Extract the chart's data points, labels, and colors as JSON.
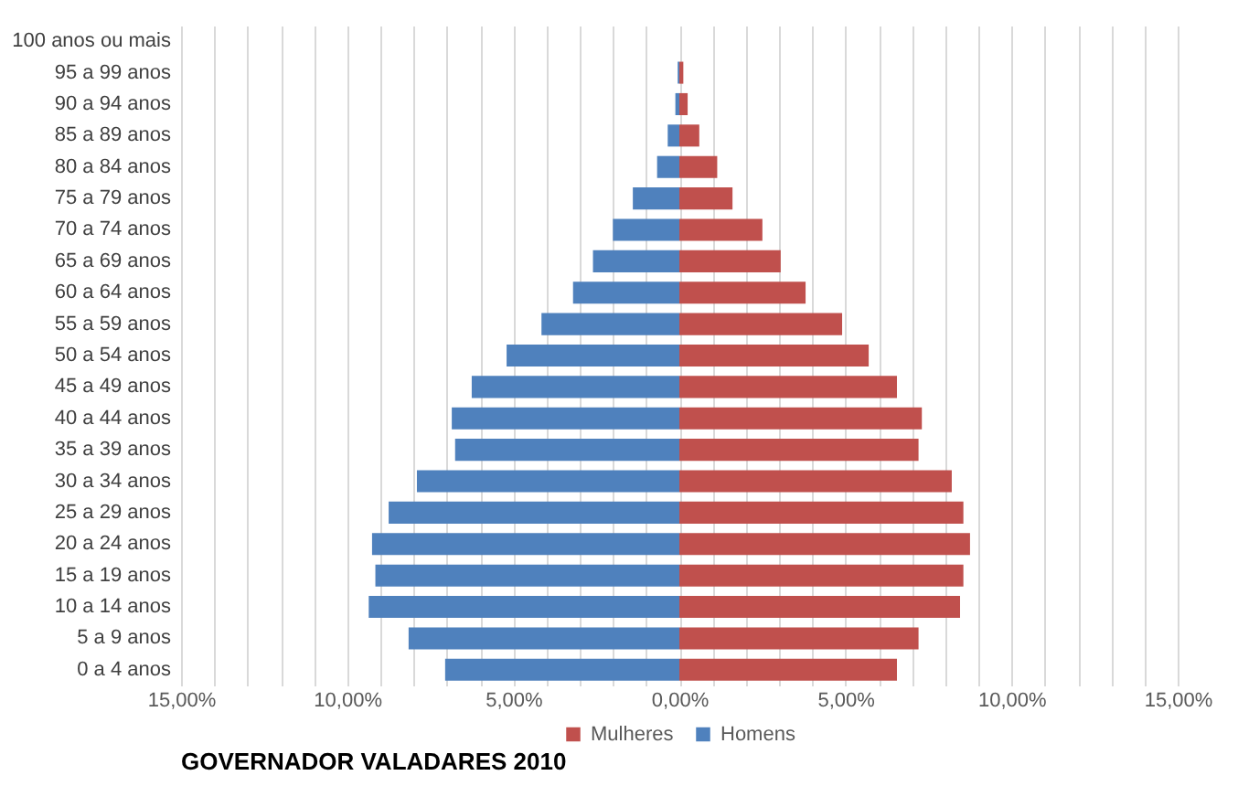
{
  "chart_data": {
    "type": "bar",
    "orientation": "horizontal",
    "title": "GOVERNADOR VALADARES 2010",
    "categories": [
      "100 anos ou mais",
      "95 a 99 anos",
      "90 a 94 anos",
      "85 a 89 anos",
      "80 a 84 anos",
      "75 a 79 anos",
      "70 a 74 anos",
      "65 a 69 anos",
      "60 a 64 anos",
      "55 a 59 anos",
      "50 a 54 anos",
      "45 a 49 anos",
      "40 a 44 anos",
      "35 a 39 anos",
      "30 a 34 anos",
      "25 a 29 anos",
      "20 a 24 anos",
      "15 a 19 anos",
      "10 a 14 anos",
      "5 a 9 anos",
      "0 a 4 anos"
    ],
    "series": [
      {
        "name": "Mulheres",
        "color": "#c0504d",
        "values": [
          0,
          0.12,
          0.25,
          0.6,
          1.14,
          1.6,
          2.5,
          3.05,
          3.8,
          4.9,
          5.7,
          6.55,
          7.3,
          7.2,
          8.2,
          8.55,
          8.75,
          8.55,
          8.45,
          7.2,
          6.55
        ]
      },
      {
        "name": "Homens",
        "color": "#4f81bd",
        "values": [
          0,
          -0.05,
          -0.12,
          -0.35,
          -0.67,
          -1.4,
          -2.0,
          -2.6,
          -3.2,
          -4.15,
          -5.2,
          -6.25,
          -6.85,
          -6.75,
          -7.9,
          -8.75,
          -9.25,
          -9.15,
          -9.35,
          -8.15,
          -7.05
        ]
      }
    ],
    "xlim": [
      -15,
      15
    ],
    "xticks": [
      {
        "value": -15,
        "label": "15,00%"
      },
      {
        "value": -14,
        "label": null
      },
      {
        "value": -13,
        "label": null
      },
      {
        "value": -12,
        "label": null
      },
      {
        "value": -11,
        "label": null
      },
      {
        "value": -10,
        "label": "10,00%"
      },
      {
        "value": -9,
        "label": null
      },
      {
        "value": -8,
        "label": null
      },
      {
        "value": -7,
        "label": null
      },
      {
        "value": -6,
        "label": null
      },
      {
        "value": -5,
        "label": "5,00%"
      },
      {
        "value": -4,
        "label": null
      },
      {
        "value": -3,
        "label": null
      },
      {
        "value": -2,
        "label": null
      },
      {
        "value": -1,
        "label": null
      },
      {
        "value": 0,
        "label": "0,00%"
      },
      {
        "value": 1,
        "label": null
      },
      {
        "value": 2,
        "label": null
      },
      {
        "value": 3,
        "label": null
      },
      {
        "value": 4,
        "label": null
      },
      {
        "value": 5,
        "label": "5,00%"
      },
      {
        "value": 6,
        "label": null
      },
      {
        "value": 7,
        "label": null
      },
      {
        "value": 8,
        "label": null
      },
      {
        "value": 9,
        "label": null
      },
      {
        "value": 10,
        "label": "10,00%"
      },
      {
        "value": 11,
        "label": null
      },
      {
        "value": 12,
        "label": null
      },
      {
        "value": 13,
        "label": null
      },
      {
        "value": 14,
        "label": null
      },
      {
        "value": 15,
        "label": "15,00%"
      }
    ],
    "stacked": true,
    "grid": true,
    "legend": "bottom"
  }
}
